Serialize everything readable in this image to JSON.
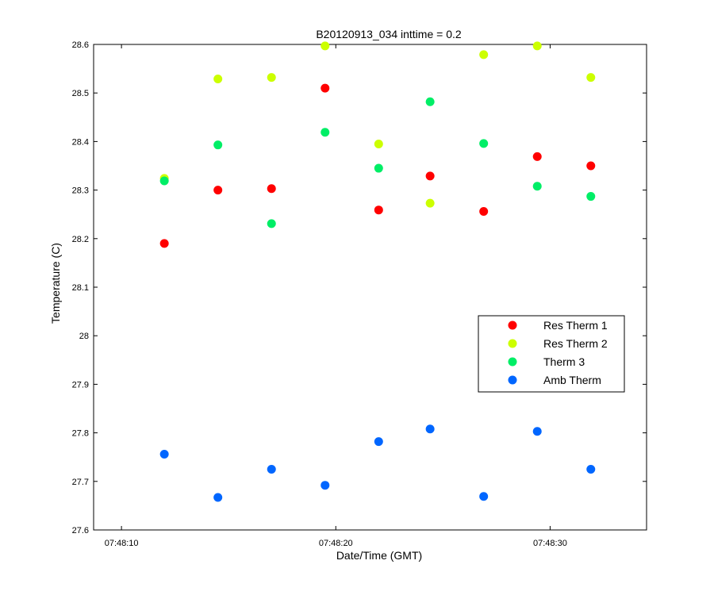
{
  "chart_data": {
    "type": "scatter",
    "title": "B20120913_034 inttime = 0.2",
    "xlabel": "Date/Time (GMT)",
    "ylabel": "Temperature (C)",
    "xlim": [
      "07:48:08.7",
      "07:48:34.5"
    ],
    "ylim": [
      27.6,
      28.6
    ],
    "x_ticks": [
      "07:48:10",
      "07:48:20",
      "07:48:30"
    ],
    "y_ticks": [
      "27.6",
      "27.7",
      "27.8",
      "27.9",
      "28",
      "28.1",
      "28.2",
      "28.3",
      "28.4",
      "28.5",
      "28.6"
    ],
    "grid": false,
    "legend_position": "center-right",
    "x": [
      "07:48:12.0",
      "07:48:14.5",
      "07:48:17.0",
      "07:48:19.5",
      "07:48:22.0",
      "07:48:24.4",
      "07:48:26.9",
      "07:48:29.4",
      "07:48:31.9"
    ],
    "series": [
      {
        "name": "Res Therm 1",
        "color": "#ff0000",
        "values": [
          28.19,
          28.3,
          28.303,
          28.51,
          28.259,
          28.329,
          28.256,
          28.369,
          28.35
        ]
      },
      {
        "name": "Res Therm 2",
        "color": "#ccff00",
        "values": [
          28.324,
          28.529,
          28.532,
          28.597,
          28.395,
          28.273,
          28.579,
          28.597,
          28.532
        ]
      },
      {
        "name": "Therm 3",
        "color": "#00ee66",
        "values": [
          28.319,
          28.393,
          28.231,
          28.419,
          28.345,
          28.482,
          28.396,
          28.308,
          28.287
        ]
      },
      {
        "name": "Amb Therm",
        "color": "#0066ff",
        "values": [
          27.756,
          27.667,
          27.725,
          27.692,
          27.782,
          27.808,
          27.669,
          27.803,
          27.725
        ]
      }
    ]
  }
}
